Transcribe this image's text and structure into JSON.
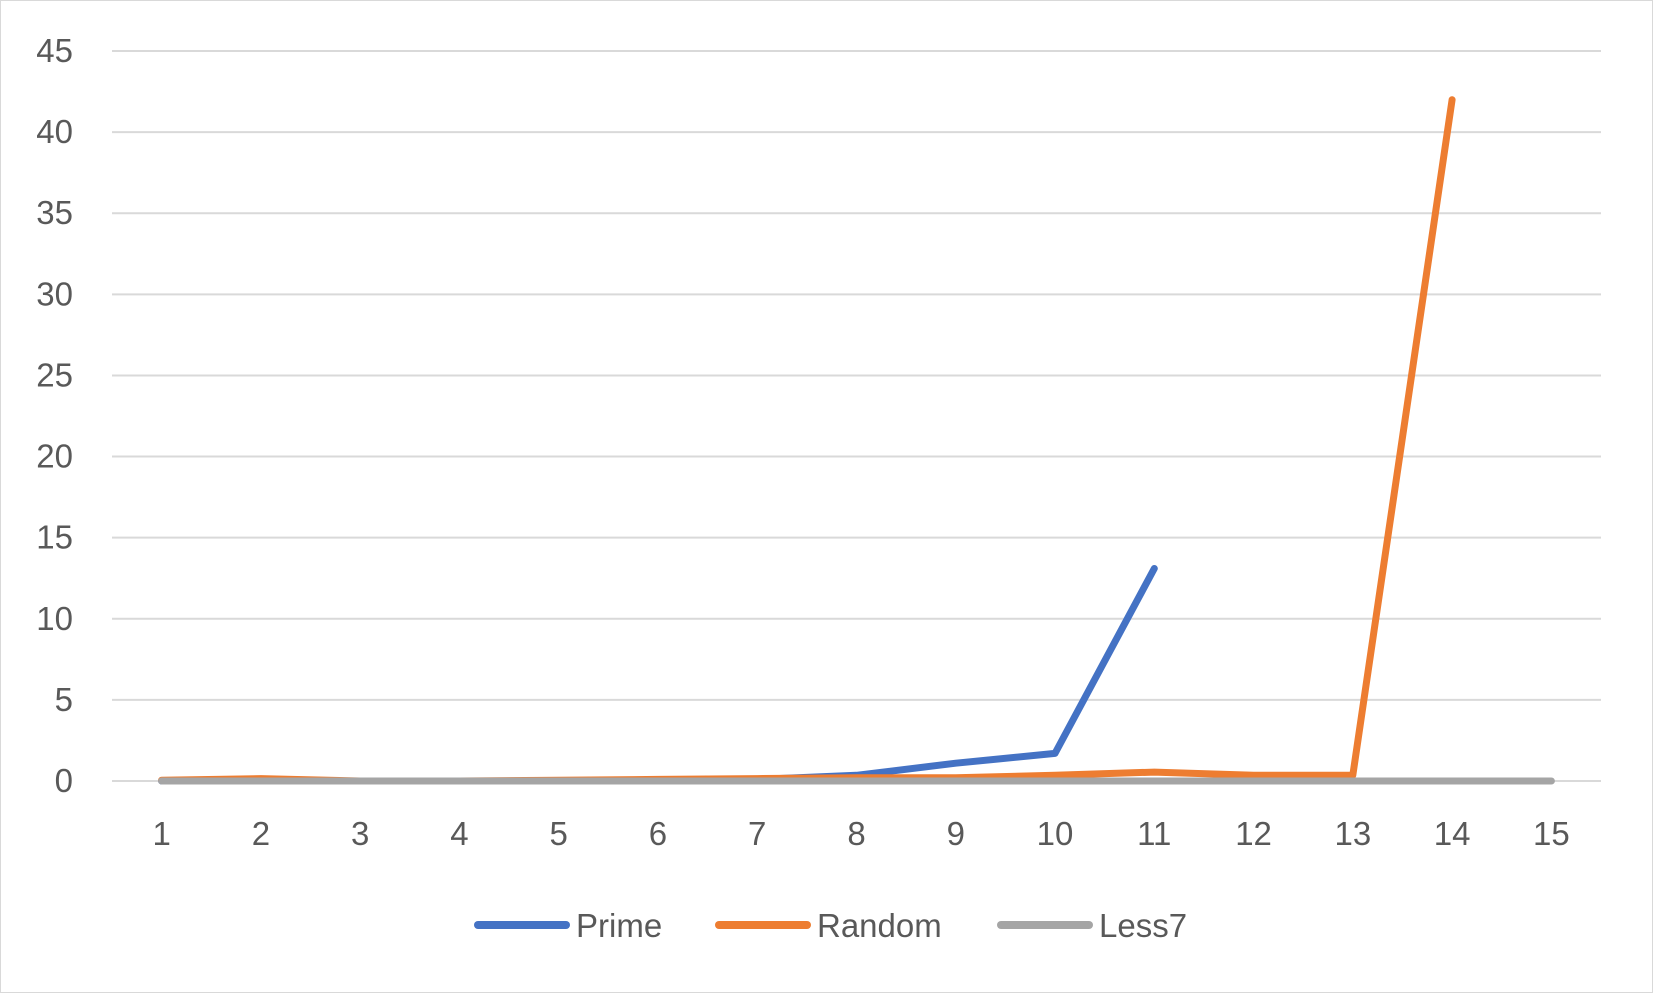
{
  "chart_data": {
    "type": "line",
    "title": "",
    "xlabel": "",
    "ylabel": "",
    "categories": [
      "1",
      "2",
      "3",
      "4",
      "5",
      "6",
      "7",
      "8",
      "9",
      "10",
      "11",
      "12",
      "13",
      "14",
      "15"
    ],
    "ylim": [
      0,
      45
    ],
    "y_ticks": [
      "0",
      "5",
      "10",
      "15",
      "20",
      "25",
      "30",
      "35",
      "40",
      "45"
    ],
    "grid": "horizontal",
    "legend_position": "bottom",
    "series": [
      {
        "name": "Prime",
        "color": "#4472C4",
        "values": [
          0,
          0,
          0,
          0,
          0,
          0,
          0.1,
          0.35,
          1.1,
          1.7,
          13.1,
          null,
          null,
          null,
          null
        ]
      },
      {
        "name": "Random",
        "color": "#ED7D31",
        "values": [
          0.05,
          0.15,
          0,
          0,
          0.05,
          0.1,
          0.15,
          0.2,
          0.2,
          0.35,
          0.55,
          0.35,
          0.35,
          42,
          null
        ]
      },
      {
        "name": "Less7",
        "color": "#A5A5A5",
        "values": [
          0,
          0,
          0,
          0,
          0,
          0,
          0,
          0,
          0,
          0,
          0,
          0,
          0,
          0,
          0
        ]
      }
    ]
  }
}
